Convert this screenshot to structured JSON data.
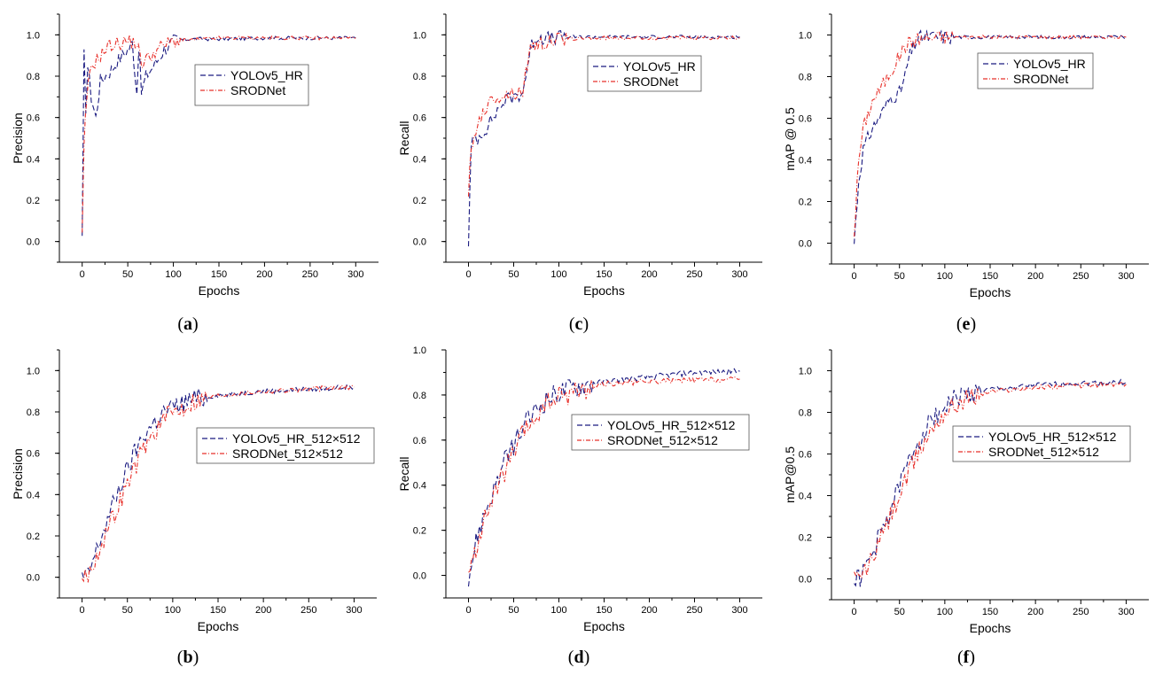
{
  "figure": {
    "colors": {
      "yolo": "#1a1a80",
      "srod": "#e8302a"
    },
    "panels": [
      {
        "id": "a",
        "label_open": "(",
        "label_letter": "a",
        "label_close": ")",
        "chart_data": {
          "type": "line",
          "xlabel": "Epochs",
          "ylabel": "Precision",
          "xlim": [
            -25,
            325
          ],
          "ylim": [
            -0.1,
            1.1
          ],
          "xticks": [
            0,
            50,
            100,
            150,
            200,
            250,
            300
          ],
          "yticks": [
            0.0,
            0.2,
            0.4,
            0.6,
            0.8,
            1.0
          ],
          "xtick_labels": [
            "0",
            "50",
            "100",
            "150",
            "200",
            "250",
            "300"
          ],
          "ytick_labels": [
            "0.0",
            "0.2",
            "0.4",
            "0.6",
            "0.8",
            "1.0"
          ],
          "legend": [
            "YOLOv5_HR",
            "SRODNet"
          ],
          "series": [
            {
              "name": "YOLOv5_HR",
              "x": [
                0,
                2,
                4,
                6,
                10,
                15,
                20,
                30,
                40,
                50,
                55,
                60,
                62,
                65,
                70,
                80,
                90,
                100,
                120,
                150,
                200,
                250,
                300
              ],
              "y": [
                0.0,
                0.9,
                0.65,
                0.85,
                0.7,
                0.6,
                0.78,
                0.82,
                0.88,
                0.93,
                0.96,
                0.72,
                0.95,
                0.72,
                0.8,
                0.86,
                0.93,
                0.97,
                0.98,
                0.98,
                0.985,
                0.985,
                0.985
              ]
            },
            {
              "name": "SRODNet",
              "x": [
                0,
                2,
                5,
                10,
                20,
                30,
                40,
                50,
                60,
                65,
                70,
                80,
                90,
                100,
                150,
                200,
                250,
                300
              ],
              "y": [
                0.02,
                0.45,
                0.7,
                0.85,
                0.9,
                0.95,
                0.96,
                0.97,
                0.96,
                0.86,
                0.88,
                0.92,
                0.95,
                0.97,
                0.985,
                0.985,
                0.985,
                0.985
              ]
            }
          ]
        }
      },
      {
        "id": "c",
        "label_open": "(",
        "label_letter": "c",
        "label_close": ")",
        "chart_data": {
          "type": "line",
          "xlabel": "Epochs",
          "ylabel": "Recall",
          "xlim": [
            -25,
            325
          ],
          "ylim": [
            -0.1,
            1.1
          ],
          "xticks": [
            0,
            50,
            100,
            150,
            200,
            250,
            300
          ],
          "yticks": [
            0.0,
            0.2,
            0.4,
            0.6,
            0.8,
            1.0
          ],
          "xtick_labels": [
            "0",
            "50",
            "100",
            "150",
            "200",
            "250",
            "300"
          ],
          "ytick_labels": [
            "0.0",
            "0.2",
            "0.4",
            "0.6",
            "0.8",
            "1.0"
          ],
          "legend": [
            "YOLOv5_HR",
            "SRODNet"
          ],
          "series": [
            {
              "name": "YOLOv5_HR",
              "x": [
                0,
                3,
                6,
                10,
                20,
                30,
                40,
                50,
                60,
                65,
                70,
                75,
                80,
                90,
                100,
                150,
                200,
                250,
                300
              ],
              "y": [
                0.0,
                0.45,
                0.5,
                0.5,
                0.55,
                0.62,
                0.68,
                0.7,
                0.72,
                0.85,
                0.95,
                0.99,
                0.99,
                0.98,
                0.99,
                0.99,
                0.99,
                0.99,
                0.99
              ]
            },
            {
              "name": "SRODNet",
              "x": [
                0,
                3,
                6,
                10,
                20,
                30,
                40,
                50,
                60,
                65,
                70,
                75,
                80,
                90,
                100,
                150,
                200,
                250,
                300
              ],
              "y": [
                0.25,
                0.42,
                0.5,
                0.58,
                0.65,
                0.7,
                0.71,
                0.72,
                0.73,
                0.86,
                0.94,
                0.96,
                0.95,
                0.97,
                0.98,
                0.985,
                0.985,
                0.985,
                0.985
              ]
            }
          ]
        }
      },
      {
        "id": "e",
        "label_open": "(",
        "label_letter": "e",
        "label_close": ")",
        "chart_data": {
          "type": "line",
          "xlabel": "Epochs",
          "ylabel": "mAP @ 0.5",
          "xlim": [
            -25,
            325
          ],
          "ylim": [
            -0.1,
            1.1
          ],
          "xticks": [
            0,
            50,
            100,
            150,
            200,
            250,
            300
          ],
          "yticks": [
            0.0,
            0.2,
            0.4,
            0.6,
            0.8,
            1.0
          ],
          "xtick_labels": [
            "0",
            "50",
            "100",
            "150",
            "200",
            "250",
            "300"
          ],
          "ytick_labels": [
            "0.0",
            "0.2",
            "0.4",
            "0.6",
            "0.8",
            "1.0"
          ],
          "legend": [
            "YOLOv5_HR",
            "SRODNet"
          ],
          "series": [
            {
              "name": "YOLOv5_HR",
              "x": [
                0,
                5,
                10,
                15,
                20,
                30,
                40,
                50,
                55,
                60,
                65,
                70,
                75,
                80,
                100,
                150,
                200,
                250,
                300
              ],
              "y": [
                0.0,
                0.3,
                0.45,
                0.5,
                0.55,
                0.62,
                0.7,
                0.72,
                0.78,
                0.88,
                0.94,
                0.98,
                0.99,
                0.99,
                0.99,
                0.99,
                0.99,
                0.99,
                0.99
              ]
            },
            {
              "name": "SRODNet",
              "x": [
                0,
                5,
                10,
                15,
                20,
                30,
                40,
                50,
                55,
                60,
                65,
                70,
                80,
                100,
                150,
                200,
                250,
                300
              ],
              "y": [
                0.05,
                0.4,
                0.55,
                0.62,
                0.68,
                0.75,
                0.82,
                0.9,
                0.94,
                0.96,
                0.97,
                0.98,
                0.985,
                0.99,
                0.99,
                0.99,
                0.99,
                0.99
              ]
            }
          ]
        }
      },
      {
        "id": "b",
        "label_open": "(",
        "label_letter": "b",
        "label_close": ")",
        "chart_data": {
          "type": "line",
          "xlabel": "Epochs",
          "ylabel": "Precision",
          "xlim": [
            -25,
            325
          ],
          "ylim": [
            -0.1,
            1.1
          ],
          "xticks": [
            0,
            50,
            100,
            150,
            200,
            250,
            300
          ],
          "yticks": [
            0.0,
            0.2,
            0.4,
            0.6,
            0.8,
            1.0
          ],
          "xtick_labels": [
            "0",
            "50",
            "100",
            "150",
            "200",
            "250",
            "300"
          ],
          "ytick_labels": [
            "0.0",
            "0.2",
            "0.4",
            "0.6",
            "0.8",
            "1.0"
          ],
          "legend": [
            "YOLOv5_HR_512×512",
            "SRODNet_512×512"
          ],
          "series": [
            {
              "name": "YOLOv5_HR_512×512",
              "x": [
                0,
                5,
                10,
                20,
                30,
                40,
                50,
                60,
                70,
                80,
                90,
                100,
                110,
                120,
                150,
                200,
                250,
                300
              ],
              "y": [
                0.0,
                0.0,
                0.05,
                0.18,
                0.3,
                0.42,
                0.52,
                0.62,
                0.7,
                0.75,
                0.8,
                0.82,
                0.84,
                0.86,
                0.88,
                0.9,
                0.91,
                0.92
              ]
            },
            {
              "name": "SRODNet_512×512",
              "x": [
                0,
                5,
                10,
                20,
                30,
                40,
                50,
                60,
                70,
                80,
                90,
                100,
                110,
                120,
                150,
                200,
                250,
                300
              ],
              "y": [
                0.0,
                0.0,
                0.04,
                0.15,
                0.25,
                0.35,
                0.45,
                0.55,
                0.64,
                0.7,
                0.76,
                0.8,
                0.82,
                0.85,
                0.88,
                0.9,
                0.91,
                0.92
              ]
            }
          ]
        }
      },
      {
        "id": "d",
        "label_open": "(",
        "label_letter": "d",
        "label_close": ")",
        "chart_data": {
          "type": "line",
          "xlabel": "Epochs",
          "ylabel": "Recall",
          "xlim": [
            -25,
            325
          ],
          "ylim": [
            -0.1,
            1.0
          ],
          "xticks": [
            0,
            50,
            100,
            150,
            200,
            250,
            300
          ],
          "yticks": [
            0.0,
            0.2,
            0.4,
            0.6,
            0.8,
            1.0
          ],
          "xtick_labels": [
            "0",
            "50",
            "100",
            "150",
            "200",
            "250",
            "300"
          ],
          "ytick_labels": [
            "0.0",
            "0.2",
            "0.4",
            "0.6",
            "0.8",
            "1.0"
          ],
          "legend": [
            "YOLOv5_HR_512×512",
            "SRODNet_512×512"
          ],
          "series": [
            {
              "name": "YOLOv5_HR_512×512",
              "x": [
                0,
                5,
                10,
                20,
                30,
                40,
                50,
                60,
                70,
                80,
                90,
                100,
                120,
                150,
                200,
                250,
                300
              ],
              "y": [
                0.0,
                0.08,
                0.18,
                0.3,
                0.4,
                0.5,
                0.58,
                0.65,
                0.71,
                0.76,
                0.79,
                0.81,
                0.84,
                0.86,
                0.88,
                0.9,
                0.905
              ]
            },
            {
              "name": "SRODNet_512×512",
              "x": [
                0,
                5,
                10,
                20,
                30,
                40,
                50,
                60,
                70,
                80,
                90,
                100,
                120,
                150,
                200,
                250,
                300
              ],
              "y": [
                0.0,
                0.06,
                0.15,
                0.27,
                0.37,
                0.46,
                0.54,
                0.62,
                0.68,
                0.73,
                0.77,
                0.79,
                0.82,
                0.85,
                0.86,
                0.865,
                0.87
              ]
            }
          ]
        }
      },
      {
        "id": "f",
        "label_open": "(",
        "label_letter": "f",
        "label_close": ")",
        "chart_data": {
          "type": "line",
          "xlabel": "Epochs",
          "ylabel": "mAP@0.5",
          "xlim": [
            -25,
            325
          ],
          "ylim": [
            -0.1,
            1.1
          ],
          "xticks": [
            0,
            50,
            100,
            150,
            200,
            250,
            300
          ],
          "yticks": [
            0.0,
            0.2,
            0.4,
            0.6,
            0.8,
            1.0
          ],
          "xtick_labels": [
            "0",
            "50",
            "100",
            "150",
            "200",
            "250",
            "300"
          ],
          "ytick_labels": [
            "0.0",
            "0.2",
            "0.4",
            "0.6",
            "0.8",
            "1.0"
          ],
          "legend": [
            "YOLOv5_HR_512×512",
            "SRODNet_512×512"
          ],
          "series": [
            {
              "name": "YOLOv5_HR_512×512",
              "x": [
                0,
                5,
                10,
                20,
                30,
                40,
                50,
                60,
                70,
                80,
                90,
                100,
                110,
                120,
                150,
                200,
                250,
                300
              ],
              "y": [
                0.0,
                0.0,
                0.03,
                0.12,
                0.22,
                0.33,
                0.45,
                0.56,
                0.66,
                0.73,
                0.79,
                0.83,
                0.86,
                0.88,
                0.91,
                0.93,
                0.94,
                0.945
              ]
            },
            {
              "name": "SRODNet_512×512",
              "x": [
                0,
                5,
                10,
                20,
                30,
                40,
                50,
                60,
                70,
                80,
                90,
                100,
                110,
                120,
                150,
                200,
                250,
                300
              ],
              "y": [
                0.0,
                0.0,
                0.02,
                0.1,
                0.2,
                0.3,
                0.4,
                0.5,
                0.6,
                0.68,
                0.75,
                0.8,
                0.83,
                0.86,
                0.9,
                0.92,
                0.93,
                0.935
              ]
            }
          ]
        }
      }
    ]
  }
}
